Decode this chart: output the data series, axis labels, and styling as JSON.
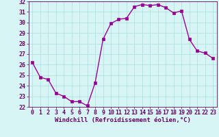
{
  "x": [
    0,
    1,
    2,
    3,
    4,
    5,
    6,
    7,
    8,
    9,
    10,
    11,
    12,
    13,
    14,
    15,
    16,
    17,
    18,
    19,
    20,
    21,
    22,
    23
  ],
  "y": [
    26.2,
    24.8,
    24.6,
    23.3,
    23.0,
    22.5,
    22.5,
    22.1,
    24.3,
    28.4,
    29.9,
    30.3,
    30.4,
    31.5,
    31.7,
    31.6,
    31.7,
    31.4,
    30.9,
    31.1,
    28.4,
    27.3,
    27.1,
    26.6
  ],
  "line_color": "#990099",
  "marker": "s",
  "marker_size": 2.5,
  "xlabel": "Windchill (Refroidissement éolien,°C)",
  "xlim": [
    -0.5,
    23.5
  ],
  "ylim": [
    22,
    32
  ],
  "yticks": [
    22,
    23,
    24,
    25,
    26,
    27,
    28,
    29,
    30,
    31,
    32
  ],
  "xticks": [
    0,
    1,
    2,
    3,
    4,
    5,
    6,
    7,
    8,
    9,
    10,
    11,
    12,
    13,
    14,
    15,
    16,
    17,
    18,
    19,
    20,
    21,
    22,
    23
  ],
  "bg_color": "#d8f5f5",
  "grid_color": "#aadddd",
  "font_color": "#660066",
  "xlabel_fontsize": 6.5,
  "tick_fontsize": 6.0,
  "linewidth": 1.0
}
